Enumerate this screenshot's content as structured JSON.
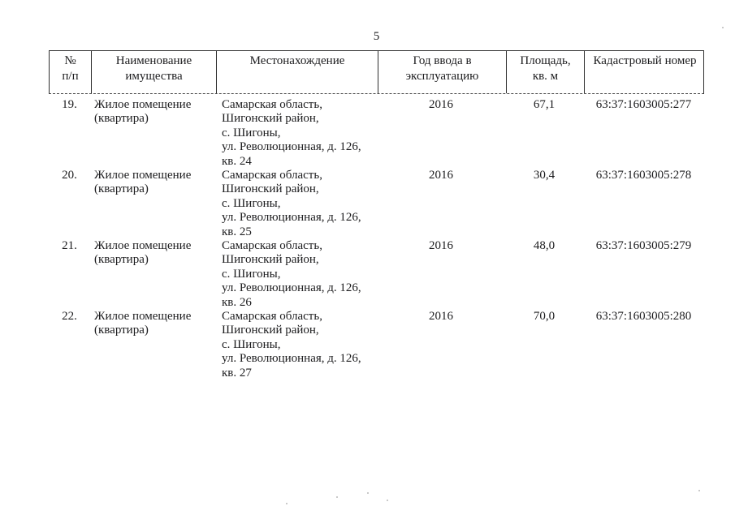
{
  "page_number": "5",
  "header": {
    "col_num": [
      "№",
      "п/п"
    ],
    "col_name": [
      "Наименование",
      "имущества"
    ],
    "col_location": "Местонахождение",
    "col_year": [
      "Год ввода в",
      "эксплуатацию"
    ],
    "col_area": [
      "Площадь,",
      "кв. м"
    ],
    "col_cadastral": "Кадастровый номер"
  },
  "rows": [
    {
      "num": "19.",
      "name": [
        "Жилое помещение",
        "(квартира)"
      ],
      "location": [
        "Самарская область,",
        "Шигонский район,",
        "с. Шигоны,",
        "ул. Революционная, д. 126,",
        "кв. 24"
      ],
      "year": "2016",
      "area": "67,1",
      "cadastral": "63:37:1603005:277"
    },
    {
      "num": "20.",
      "name": [
        "Жилое помещение",
        "(квартира)"
      ],
      "location": [
        "Самарская область,",
        "Шигонский район,",
        "с. Шигоны,",
        "ул. Революционная, д. 126,",
        "кв. 25"
      ],
      "year": "2016",
      "area": "30,4",
      "cadastral": "63:37:1603005:278"
    },
    {
      "num": "21.",
      "name": [
        "Жилое помещение",
        "(квартира)"
      ],
      "location": [
        "Самарская область,",
        "Шигонский район,",
        "с. Шигоны,",
        "ул. Революционная, д. 126,",
        "кв. 26"
      ],
      "year": "2016",
      "area": "48,0",
      "cadastral": "63:37:1603005:279"
    },
    {
      "num": "22.",
      "name": [
        "Жилое помещение",
        "(квартира)"
      ],
      "location": [
        "Самарская область,",
        "Шигонский район,",
        "с. Шигоны,",
        "ул. Революционная, д. 126,",
        "кв. 27"
      ],
      "year": "2016",
      "area": "70,0",
      "cadastral": "63:37:1603005:280"
    }
  ]
}
